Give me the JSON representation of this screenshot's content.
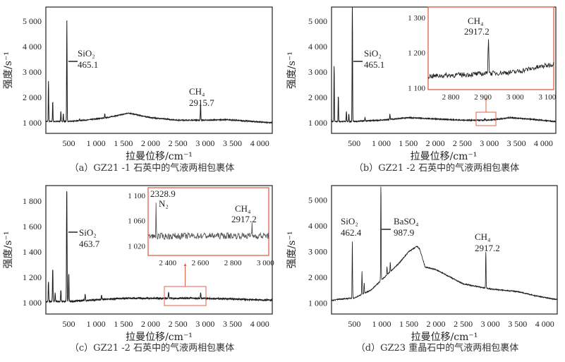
{
  "chart_data": [
    {
      "id": "a",
      "type": "line",
      "caption": "（a）GZ21 -1 石英中的气液两相包裹体",
      "xlabel": "拉曼位移/cm⁻¹",
      "ylabel": "强度/s⁻¹",
      "xlim": [
        80,
        4230
      ],
      "ylim": [
        580,
        5560
      ],
      "xticks": [
        500,
        1000,
        1500,
        2000,
        2500,
        3000,
        3500,
        4000
      ],
      "xtick_labels": [
        "500",
        "1 000",
        "1 500",
        "2 000",
        "2 500",
        "3 000",
        "3 500",
        "4 000"
      ],
      "yticks": [
        1000,
        2000,
        3000,
        4000,
        5000
      ],
      "ytick_labels": [
        "1 000",
        "2 000",
        "3 000",
        "4 000",
        "5 000"
      ],
      "baseline": [
        [
          80,
          1050
        ],
        [
          200,
          1050
        ],
        [
          500,
          1050
        ],
        [
          800,
          1100
        ],
        [
          1200,
          1200
        ],
        [
          1600,
          1380
        ],
        [
          2000,
          1200
        ],
        [
          2500,
          1100
        ],
        [
          3000,
          1100
        ],
        [
          3400,
          1120
        ],
        [
          4200,
          1000
        ]
      ],
      "peaks": [
        [
          128,
          2650
        ],
        [
          206,
          1850
        ],
        [
          355,
          1450
        ],
        [
          400,
          1350
        ],
        [
          465.1,
          5050
        ],
        [
          700,
          1150
        ],
        [
          1160,
          1350
        ],
        [
          2915.7,
          1800
        ]
      ],
      "annotations": [
        {
          "species": "SiO₂",
          "value": "465.1",
          "x": 465.1
        },
        {
          "species": "CH₄",
          "value": "2915.7",
          "x": 2915.7
        }
      ]
    },
    {
      "id": "b",
      "type": "line",
      "caption": "（b）GZ21 -2 石英中的气液两相包裹体",
      "xlabel": "拉曼位移/cm⁻¹",
      "ylabel": "强度/s⁻¹",
      "xlim": [
        80,
        4230
      ],
      "ylim": [
        580,
        5560
      ],
      "xticks": [
        500,
        1000,
        1500,
        2000,
        2500,
        3000,
        3500,
        4000
      ],
      "xtick_labels": [
        "500",
        "1 000",
        "1 500",
        "2 000",
        "2 500",
        "3 000",
        "3 500",
        "4 000"
      ],
      "yticks": [
        1000,
        2000,
        3000,
        4000,
        5000
      ],
      "ytick_labels": [
        "1 000",
        "2 000",
        "3 000",
        "4 000",
        "5 000"
      ],
      "baseline": [
        [
          80,
          1050
        ],
        [
          500,
          1050
        ],
        [
          1000,
          1100
        ],
        [
          1500,
          1200
        ],
        [
          2000,
          1150
        ],
        [
          2500,
          1100
        ],
        [
          3000,
          1100
        ],
        [
          3400,
          1200
        ],
        [
          3700,
          1150
        ],
        [
          4200,
          1050
        ]
      ],
      "peaks": [
        [
          128,
          3250
        ],
        [
          206,
          2050
        ],
        [
          355,
          1450
        ],
        [
          400,
          1350
        ],
        [
          465.1,
          5600
        ],
        [
          700,
          1200
        ],
        [
          1160,
          1350
        ],
        [
          2917.2,
          1150
        ]
      ],
      "annotations": [
        {
          "species": "SiO₂",
          "value": "465.1",
          "x": 465.1
        }
      ],
      "inset": {
        "xlim": [
          2730,
          3120
        ],
        "ylim": [
          1095,
          1330
        ],
        "xticks": [
          2800,
          2900,
          3000,
          3100
        ],
        "xtick_labels": [
          "2 800",
          "2 900",
          "3 000",
          "3 100"
        ],
        "yticks": [
          1100,
          1200,
          1300
        ],
        "ytick_labels": [
          "1 100",
          "1 200",
          "1 300"
        ],
        "baseline": [
          [
            2730,
            1133
          ],
          [
            2900,
            1140
          ],
          [
            3000,
            1145
          ],
          [
            3120,
            1168
          ]
        ],
        "peaks": [
          [
            2917.2,
            1245
          ]
        ],
        "annotations": [
          {
            "species": "CH₄",
            "value": "2917.2",
            "x": 2917.2
          }
        ],
        "zoom_range": [
          2700,
          3100
        ]
      }
    },
    {
      "id": "c",
      "type": "line",
      "caption": "（c）GZ21 -2 石英中的气液两相包裹体",
      "xlabel": "拉曼位移/cm⁻¹",
      "ylabel": "强度/s⁻¹",
      "xlim": [
        80,
        4230
      ],
      "ylim": [
        911,
        1922
      ],
      "xticks": [
        500,
        1000,
        1500,
        2000,
        2500,
        3000,
        3500,
        4000
      ],
      "xtick_labels": [
        "500",
        "1 000",
        "1 500",
        "2 000",
        "2 500",
        "3 000",
        "3 500",
        "4 000"
      ],
      "yticks": [
        1000,
        1200,
        1400,
        1600,
        1800
      ],
      "ytick_labels": [
        "1 000",
        "1 200",
        "1 400",
        "1 600",
        "1 800"
      ],
      "baseline": [
        [
          80,
          1010
        ],
        [
          500,
          1010
        ],
        [
          1500,
          1035
        ],
        [
          3000,
          1035
        ],
        [
          4200,
          1020
        ]
      ],
      "peaks": [
        [
          128,
          1170
        ],
        [
          206,
          1265
        ],
        [
          250,
          1075
        ],
        [
          355,
          1100
        ],
        [
          463.7,
          1910
        ],
        [
          500,
          1230
        ],
        [
          800,
          1070
        ],
        [
          1100,
          1060
        ],
        [
          2328.9,
          1085
        ],
        [
          2917.2,
          1080
        ]
      ],
      "annotations": [
        {
          "species": "SiO₂",
          "value": "463.7",
          "x": 463.7
        }
      ],
      "inset": {
        "xlim": [
          2280,
          3020
        ],
        "ylim": [
          1005,
          1112
        ],
        "xticks": [
          2400,
          2600,
          2800,
          3000
        ],
        "xtick_labels": [
          "2 400",
          "2 600",
          "2 800",
          "3 000"
        ],
        "yticks": [
          1020,
          1060,
          1100
        ],
        "ytick_labels": [
          "1 020",
          "1 060",
          "1 100"
        ],
        "baseline": [
          [
            2280,
            1035
          ],
          [
            2600,
            1036
          ],
          [
            3020,
            1036
          ]
        ],
        "peaks": [
          [
            2328.9,
            1090
          ],
          [
            2917.2,
            1058
          ]
        ],
        "annotations": [
          {
            "species": "N₂",
            "value": "2328.9",
            "x": 2328.9
          },
          {
            "species": "CH₄",
            "value": "2917.2",
            "x": 2917.2
          }
        ],
        "zoom_range": [
          2250,
          3020
        ]
      }
    },
    {
      "id": "d",
      "type": "line",
      "caption": "（d）GZ23 重晶石中的气液两相包裹体",
      "xlabel": "拉曼位移/cm⁻¹",
      "ylabel": "强度/s⁻¹",
      "xlim": [
        80,
        4230
      ],
      "ylim": [
        580,
        5560
      ],
      "xticks": [
        500,
        1000,
        1500,
        2000,
        2500,
        3000,
        3500,
        4000
      ],
      "xtick_labels": [
        "500",
        "1 000",
        "1 500",
        "2 000",
        "2 500",
        "3 000",
        "3 500",
        "4 000"
      ],
      "yticks": [
        1000,
        2000,
        3000,
        4000,
        5000
      ],
      "ytick_labels": [
        "1 000",
        "2 000",
        "3 000",
        "4 000",
        "5 000"
      ],
      "baseline": [
        [
          80,
          1100
        ],
        [
          200,
          1150
        ],
        [
          500,
          1200
        ],
        [
          800,
          1500
        ],
        [
          1000,
          1900
        ],
        [
          1300,
          2500
        ],
        [
          1500,
          3000
        ],
        [
          1650,
          3200
        ],
        [
          1700,
          3100
        ],
        [
          1800,
          2400
        ],
        [
          2000,
          2300
        ],
        [
          2500,
          1750
        ],
        [
          3000,
          1550
        ],
        [
          3500,
          1450
        ],
        [
          3800,
          1300
        ],
        [
          4200,
          1150
        ]
      ],
      "peaks": [
        [
          462.4,
          3400
        ],
        [
          640,
          2250
        ],
        [
          680,
          1800
        ],
        [
          987.9,
          5600
        ],
        [
          1100,
          2400
        ],
        [
          1160,
          2600
        ],
        [
          2917.2,
          3000
        ]
      ],
      "annotations": [
        {
          "species": "SiO₂",
          "value": "462.4",
          "x": 462.4
        },
        {
          "species": "BaSO₄",
          "value": "987.9",
          "x": 987.9
        },
        {
          "species": "CH₄",
          "value": "2917.2",
          "x": 2917.2
        }
      ]
    }
  ],
  "colors": {
    "line": "#1a1a1a",
    "inset_line": "#555555",
    "highlight": "#e0604a"
  }
}
